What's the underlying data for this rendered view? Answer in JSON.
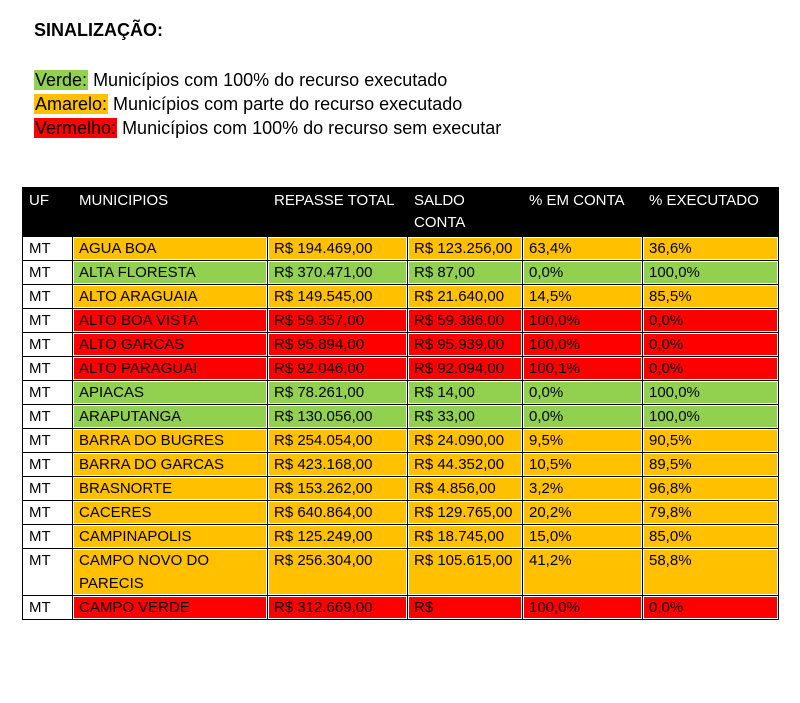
{
  "header": {
    "title": "SINALIZAÇÃO:"
  },
  "legend": [
    {
      "label": "Verde:",
      "text": "Municípios com 100% do recurso executado",
      "color": "#92d050"
    },
    {
      "label": "Amarelo:",
      "text": "Municípios com parte do recurso executado",
      "color": "#ffc000"
    },
    {
      "label": "Vermelho:",
      "text": "Municípios com 100% do recurso sem executar",
      "color": "#ff0000"
    }
  ],
  "table": {
    "columns": [
      "UF",
      "MUNICIPIOS",
      "REPASSE TOTAL",
      "SALDO CONTA",
      "% EM CONTA",
      "% EXECUTADO"
    ],
    "rows": [
      {
        "color": "#ffc000",
        "cells": [
          "MT",
          "AGUA BOA",
          "R$ 194.469,00",
          "R$ 123.256,00",
          "63,4%",
          "36,6%"
        ]
      },
      {
        "color": "#92d050",
        "cells": [
          "MT",
          "ALTA FLORESTA",
          "R$ 370.471,00",
          "R$ 87,00",
          "0,0%",
          "100,0%"
        ]
      },
      {
        "color": "#ffc000",
        "cells": [
          "MT",
          "ALTO ARAGUAIA",
          "R$ 149.545,00",
          "R$ 21.640,00",
          "14,5%",
          "85,5%"
        ]
      },
      {
        "color": "#ff0000",
        "cells": [
          "MT",
          "ALTO BOA VISTA",
          "R$ 59.357,00",
          "R$ 59.386,00",
          "100,0%",
          "0,0%"
        ]
      },
      {
        "color": "#ff0000",
        "cells": [
          "MT",
          "ALTO GARCAS",
          "R$ 95.894,00",
          "R$ 95.939,00",
          "100,0%",
          "0,0%"
        ]
      },
      {
        "color": "#ff0000",
        "cells": [
          "MT",
          "ALTO PARAGUAI",
          "R$ 92.046,00",
          "R$ 92.094,00",
          "100,1%",
          "0,0%"
        ]
      },
      {
        "color": "#92d050",
        "cells": [
          "MT",
          "APIACAS",
          "R$ 78.261,00",
          "R$ 14,00",
          "0,0%",
          "100,0%"
        ]
      },
      {
        "color": "#92d050",
        "cells": [
          "MT",
          "ARAPUTANGA",
          "R$ 130.056,00",
          "R$ 33,00",
          "0,0%",
          "100,0%"
        ]
      },
      {
        "color": "#ffc000",
        "cells": [
          "MT",
          "BARRA DO BUGRES",
          "R$ 254.054,00",
          "R$ 24.090,00",
          "9,5%",
          "90,5%"
        ]
      },
      {
        "color": "#ffc000",
        "cells": [
          "MT",
          "BARRA DO GARCAS",
          "R$ 423.168,00",
          "R$ 44.352,00",
          "10,5%",
          "89,5%"
        ]
      },
      {
        "color": "#ffc000",
        "cells": [
          "MT",
          "BRASNORTE",
          "R$ 153.262,00",
          "R$ 4.856,00",
          "3,2%",
          "96,8%"
        ]
      },
      {
        "color": "#ffc000",
        "cells": [
          "MT",
          "CACERES",
          "R$ 640.864,00",
          "R$ 129.765,00",
          "20,2%",
          "79,8%"
        ]
      },
      {
        "color": "#ffc000",
        "cells": [
          "MT",
          "CAMPINAPOLIS",
          "R$ 125.249,00",
          "R$ 18.745,00",
          "15,0%",
          "85,0%"
        ]
      },
      {
        "color": "#ffc000",
        "cells": [
          "MT",
          "CAMPO NOVO DO PARECIS",
          "R$ 256.304,00",
          "R$ 105.615,00",
          "41,2%",
          "58,8%"
        ]
      },
      {
        "color": "#ff0000",
        "cells": [
          "MT",
          "CAMPO VERDE",
          "R$ 312.669,00",
          "R$",
          "100,0%",
          "0,0%"
        ]
      }
    ]
  }
}
